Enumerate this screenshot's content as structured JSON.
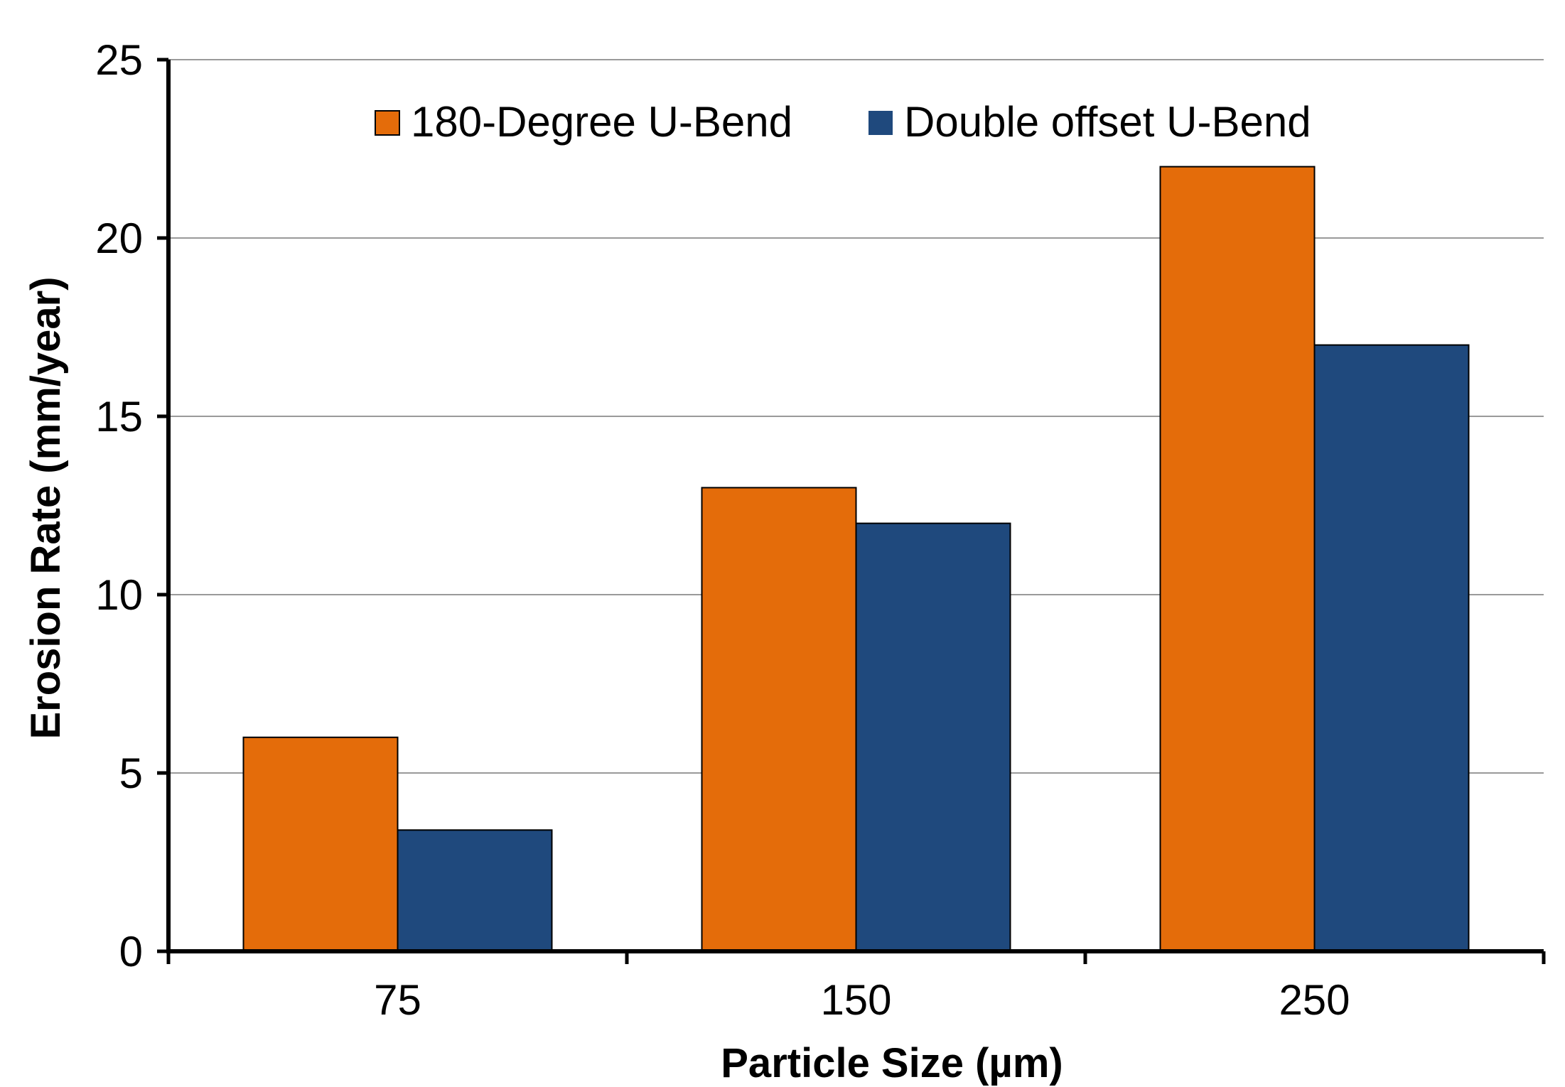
{
  "chart_data": {
    "type": "bar",
    "title": "",
    "xlabel": "Particle Size (µm)",
    "ylabel": "Erosion Rate (mm/year)",
    "categories": [
      "75",
      "150",
      "250"
    ],
    "series": [
      {
        "name": "180-Degree U-Bend",
        "color": "#E46C0A",
        "values": [
          6,
          13,
          22
        ]
      },
      {
        "name": "Double offset U-Bend",
        "color": "#1F497D",
        "values": [
          3.4,
          12,
          17
        ]
      }
    ],
    "ylim": [
      0,
      25
    ],
    "yticks": [
      "0",
      "5",
      "10",
      "15",
      "20",
      "25"
    ],
    "grid": true,
    "legend_position": "top-center"
  }
}
